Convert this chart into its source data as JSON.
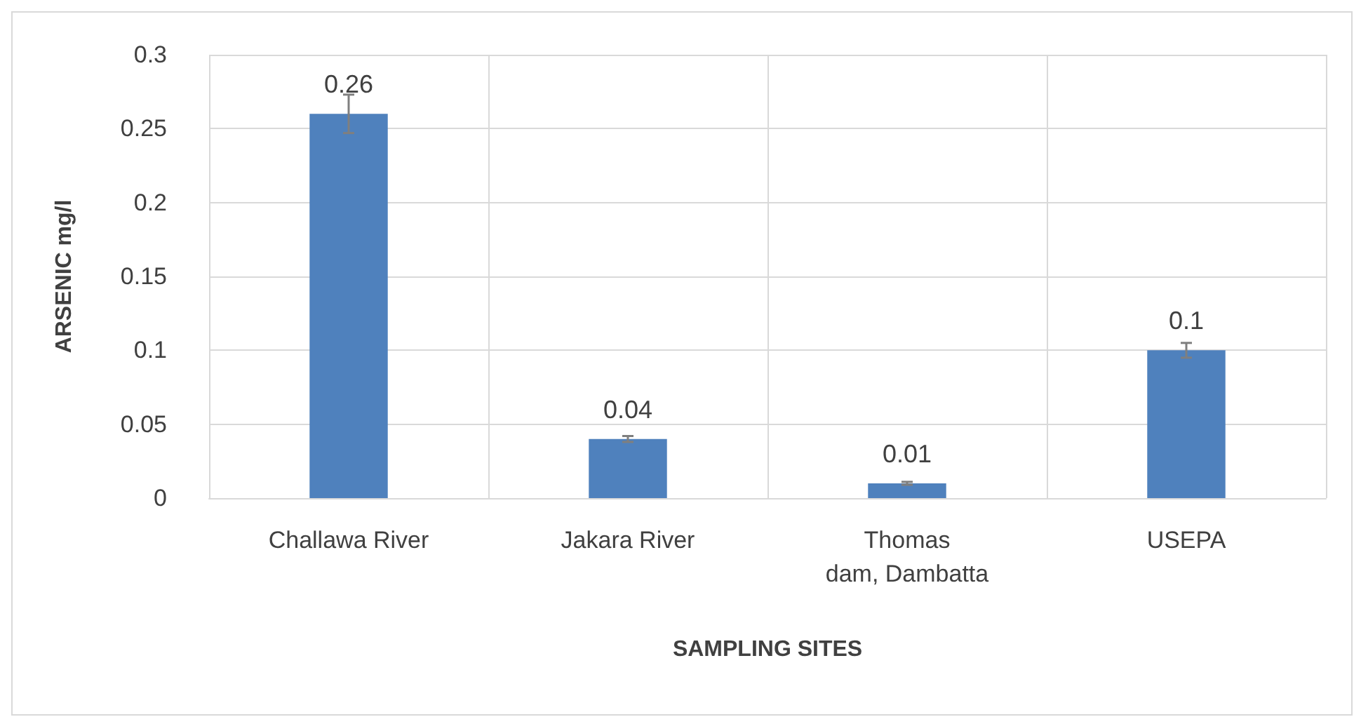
{
  "chart_data": {
    "type": "bar",
    "xlabel": "SAMPLING SITES",
    "ylabel": "ARSENIC mg/l",
    "categories": [
      "Challawa River",
      "Jakara River",
      "Thomas\ndam, Dambatta",
      "USEPA"
    ],
    "values": [
      0.26,
      0.04,
      0.01,
      0.1
    ],
    "errors": [
      0.013,
      0.002,
      0.001,
      0.005
    ],
    "color": "#4f81bd",
    "ylim": [
      0,
      0.3
    ],
    "yticks": [
      0,
      0.05,
      0.1,
      0.15,
      0.2,
      0.25,
      0.3
    ],
    "grid": true,
    "data_labels": true
  }
}
